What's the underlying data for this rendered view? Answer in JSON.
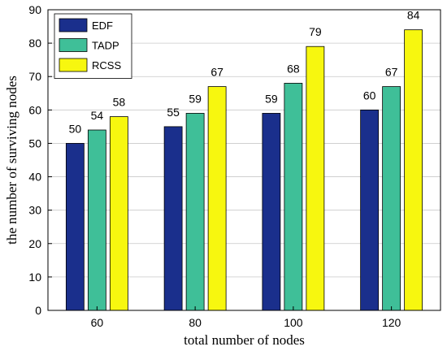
{
  "chart_data": {
    "type": "bar",
    "title": "",
    "xlabel": "total number of nodes",
    "ylabel": "the number of surviving nodes",
    "categories": [
      "60",
      "80",
      "100",
      "120"
    ],
    "series": [
      {
        "name": "EDF",
        "values": [
          50,
          55,
          59,
          60
        ],
        "color": "#1a2f8c"
      },
      {
        "name": "TADP",
        "values": [
          54,
          59,
          68,
          67
        ],
        "color": "#3fbf98"
      },
      {
        "name": "RCSS",
        "values": [
          58,
          67,
          79,
          84
        ],
        "color": "#f7f70f"
      }
    ],
    "ylim": [
      0,
      90
    ],
    "yticks": [
      0,
      10,
      20,
      30,
      40,
      50,
      60,
      70,
      80,
      90
    ],
    "grid": true,
    "legend_position": "top-left",
    "data_labels": true
  }
}
